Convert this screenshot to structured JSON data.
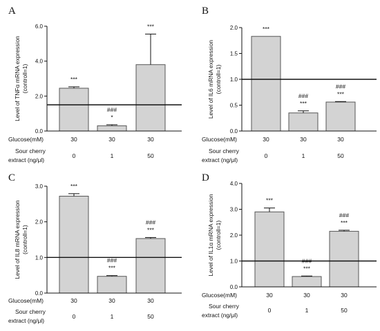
{
  "panels": [
    {
      "letter": "A",
      "chart_data": {
        "type": "bar",
        "ylabel": [
          "Level of TNFα mRNA expression",
          "(controll=1)"
        ],
        "categories": [
          "30/0",
          "30/1",
          "30/50"
        ],
        "values": [
          2.45,
          0.3,
          3.8
        ],
        "errors": [
          0.08,
          0.06,
          1.75
        ],
        "ylim": [
          0,
          6.0
        ],
        "yticks": [
          "0.0",
          "2.0",
          "4.0",
          "6.0"
        ],
        "ytick_values": [
          0,
          2,
          4,
          6
        ],
        "reference_line": 1.5,
        "annotations": [
          [
            "***"
          ],
          [
            "###",
            "*"
          ],
          [
            "***"
          ]
        ],
        "glucose_label": "Glucose(mM)",
        "glucose": [
          "30",
          "30",
          "30"
        ],
        "extract_label": [
          "Sour cherry",
          "extract (ng/μl)"
        ],
        "extract": [
          "0",
          "1",
          "50"
        ],
        "grid": false
      }
    },
    {
      "letter": "B",
      "chart_data": {
        "type": "bar",
        "ylabel": [
          "Level of IL6 mRNA expression",
          "(controll=1)"
        ],
        "categories": [
          "30/0",
          "30/1",
          "30/50"
        ],
        "values": [
          1.83,
          0.35,
          0.56
        ],
        "errors": [
          0.0,
          0.04,
          0.01
        ],
        "ylim": [
          0,
          2.0
        ],
        "yticks": [
          "0.0",
          "0.5",
          "1.0",
          "1.5",
          "2.0"
        ],
        "ytick_values": [
          0,
          0.5,
          1.0,
          1.5,
          2.0
        ],
        "reference_line": 1.0,
        "annotations": [
          [
            "***"
          ],
          [
            "###",
            "***"
          ],
          [
            "###",
            "***"
          ]
        ],
        "glucose_label": "Glucose(mM)",
        "glucose": [
          "30",
          "30",
          "30"
        ],
        "extract_label": [
          "Sour cherry",
          "extract (ng/μl)"
        ],
        "extract": [
          "0",
          "1",
          "50"
        ],
        "grid": false
      }
    },
    {
      "letter": "C",
      "chart_data": {
        "type": "bar",
        "ylabel": [
          "Level of IL8 mRNA expression",
          "(controll=1)"
        ],
        "categories": [
          "30/0",
          "30/1",
          "30/50"
        ],
        "values": [
          2.72,
          0.47,
          1.53
        ],
        "errors": [
          0.07,
          0.02,
          0.03
        ],
        "ylim": [
          0,
          3.0
        ],
        "yticks": [
          "0.0",
          "1.0",
          "2.0",
          "3.0"
        ],
        "ytick_values": [
          0,
          1,
          2,
          3
        ],
        "reference_line": 1.0,
        "annotations": [
          [
            "***"
          ],
          [
            "###",
            "***"
          ],
          [
            "###",
            "***"
          ]
        ],
        "glucose_label": "Glucose(mM)",
        "glucose": [
          "30",
          "30",
          "30"
        ],
        "extract_label": [
          "Sour cherry",
          "extract (ng/μl)"
        ],
        "extract": [
          "0",
          "1",
          "50"
        ],
        "grid": false
      }
    },
    {
      "letter": "D",
      "chart_data": {
        "type": "bar",
        "ylabel": [
          "Level of IL1α mRNA expression",
          "(controll=1)"
        ],
        "categories": [
          "30/0",
          "30/1",
          "30/50"
        ],
        "values": [
          2.9,
          0.4,
          2.15
        ],
        "errors": [
          0.15,
          0.02,
          0.04
        ],
        "ylim": [
          0,
          4.0
        ],
        "yticks": [
          "0.0",
          "1.0",
          "2.0",
          "3.0",
          "4.0"
        ],
        "ytick_values": [
          0,
          1,
          2,
          3,
          4
        ],
        "reference_line": 1.0,
        "annotations": [
          [
            "***"
          ],
          [
            "###",
            "***"
          ],
          [
            "###",
            "***"
          ]
        ],
        "glucose_label": "Glucose(mM)",
        "glucose": [
          "30",
          "30",
          "30"
        ],
        "extract_label": [
          "Sour cherry",
          "extract (ng/μl)"
        ],
        "extract": [
          "0",
          "1",
          "50"
        ],
        "grid": false
      }
    }
  ],
  "colors": {
    "bar_fill": "#d3d3d3",
    "bar_stroke": "#555555",
    "axis": "#111111"
  }
}
